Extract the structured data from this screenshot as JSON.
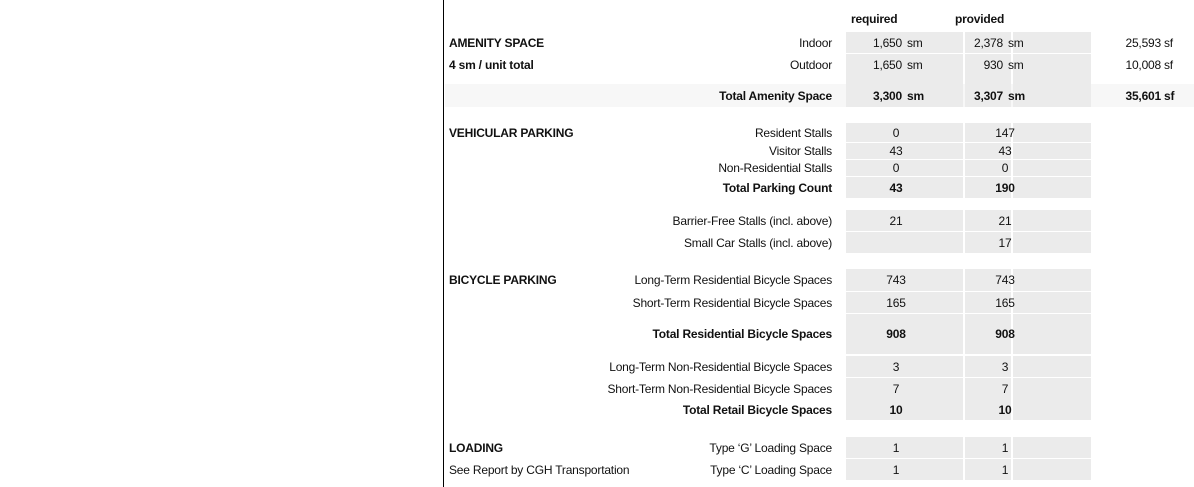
{
  "header": {
    "required": "required",
    "provided": "provided"
  },
  "amenity": {
    "title": "AMENITY SPACE",
    "subtitle": "4 sm / unit total",
    "rows": [
      {
        "label": "Indoor",
        "required": "1,650",
        "required_unit": "sm",
        "provided": "2,378",
        "provided_unit": "sm",
        "alt": "25,593",
        "alt_unit": "sf"
      },
      {
        "label": "Outdoor",
        "required": "1,650",
        "required_unit": "sm",
        "provided": "930",
        "provided_unit": "sm",
        "alt": "10,008",
        "alt_unit": "sf"
      }
    ],
    "total": {
      "label": "Total Amenity Space",
      "required": "3,300",
      "required_unit": "sm",
      "provided": "3,307",
      "provided_unit": "sm",
      "alt": "35,601",
      "alt_unit": "sf"
    }
  },
  "vehicular": {
    "title": "VEHICULAR PARKING",
    "rows": [
      {
        "label": "Resident Stalls",
        "required": "0",
        "provided": "147"
      },
      {
        "label": "Visitor Stalls",
        "required": "43",
        "provided": "43"
      },
      {
        "label": "Non-Residential Stalls",
        "required": "0",
        "provided": "0"
      },
      {
        "label": "Total Parking Count",
        "required": "43",
        "provided": "190"
      },
      {
        "label": "Barrier-Free Stalls (incl. above)",
        "required": "21",
        "provided": "21"
      },
      {
        "label": "Small Car Stalls (incl. above)",
        "required": "",
        "provided": "17"
      }
    ]
  },
  "bicycle": {
    "title": "BICYCLE PARKING",
    "rows": [
      {
        "label": "Long-Term Residential Bicycle Spaces",
        "required": "743",
        "provided": "743"
      },
      {
        "label": "Short-Term Residential Bicycle Spaces",
        "required": "165",
        "provided": "165"
      },
      {
        "label": "Total Residential Bicycle Spaces",
        "required": "908",
        "provided": "908"
      },
      {
        "label": "Long-Term Non-Residential Bicycle Spaces",
        "required": "3",
        "provided": "3"
      },
      {
        "label": "Short-Term Non-Residential Bicycle Spaces",
        "required": "7",
        "provided": "7"
      },
      {
        "label": "Total Retail Bicycle Spaces",
        "required": "10",
        "provided": "10"
      }
    ]
  },
  "loading": {
    "title": "LOADING",
    "subtitle": "See Report by CGH Transportation",
    "rows": [
      {
        "label": "Type ‘G’ Loading Space",
        "required": "1",
        "provided": "1"
      },
      {
        "label": "Type ‘C’ Loading Space",
        "required": "1",
        "provided": "1"
      }
    ]
  }
}
